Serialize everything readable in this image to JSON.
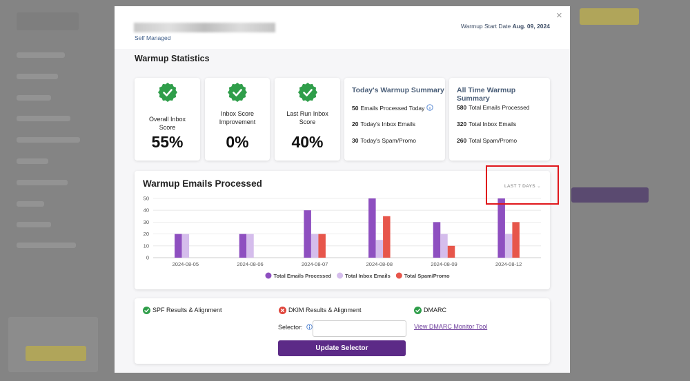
{
  "header": {
    "account_type": "Self Managed",
    "start_date_label": "Warmup Start Date",
    "start_date": "Aug. 09, 2024"
  },
  "statistics": {
    "title": "Warmup Statistics",
    "scores": [
      {
        "label": "Overall Inbox Score",
        "value": "55%"
      },
      {
        "label": "Inbox Score Improvement",
        "value": "0%"
      },
      {
        "label": "Last Run Inbox Score",
        "value": "40%"
      }
    ],
    "summaries": [
      {
        "title": "Today's Warmup Summary",
        "items": [
          {
            "count": 50,
            "label": "Emails Processed Today"
          },
          {
            "count": 20,
            "label": "Today's Inbox Emails"
          },
          {
            "count": 30,
            "label": "Today's Spam/Promo"
          }
        ]
      },
      {
        "title": "All Time Warmup Summary",
        "items": [
          {
            "count": 580,
            "label": "Total Emails Processed"
          },
          {
            "count": 320,
            "label": "Total Inbox Emails"
          },
          {
            "count": 260,
            "label": "Total Spam/Promo"
          }
        ]
      }
    ]
  },
  "chart_data": {
    "type": "bar",
    "title": "Warmup Emails Processed",
    "categories": [
      "2024-08-05",
      "2024-08-06",
      "2024-08-07",
      "2024-08-08",
      "2024-08-09",
      "2024-08-12"
    ],
    "series": [
      {
        "name": "Total Emails Processed",
        "color": "#8e4fc0",
        "values": [
          20,
          20,
          40,
          50,
          30,
          50
        ]
      },
      {
        "name": "Total Inbox Emails",
        "color": "#d5bdec",
        "values": [
          20,
          20,
          20,
          15,
          20,
          20
        ]
      },
      {
        "name": "Total Spam/Promo",
        "color": "#e7564b",
        "values": [
          0,
          0,
          20,
          35,
          10,
          30
        ]
      }
    ],
    "ylim": [
      0,
      50
    ],
    "yticks": [
      0,
      10,
      20,
      30,
      40,
      50
    ],
    "grid": true,
    "legend": "bottom"
  },
  "range_select": "LAST 7 DAYS",
  "checks": [
    {
      "label": "SPF Results & Alignment",
      "status": "pass"
    },
    {
      "label": "DKIM Results & Alignment",
      "status": "fail"
    },
    {
      "label": "DMARC",
      "status": "pass"
    }
  ],
  "selector": {
    "label": "Selector:",
    "button": "Update Selector"
  },
  "dmarc_link": "View DMARC Monitor Tool"
}
